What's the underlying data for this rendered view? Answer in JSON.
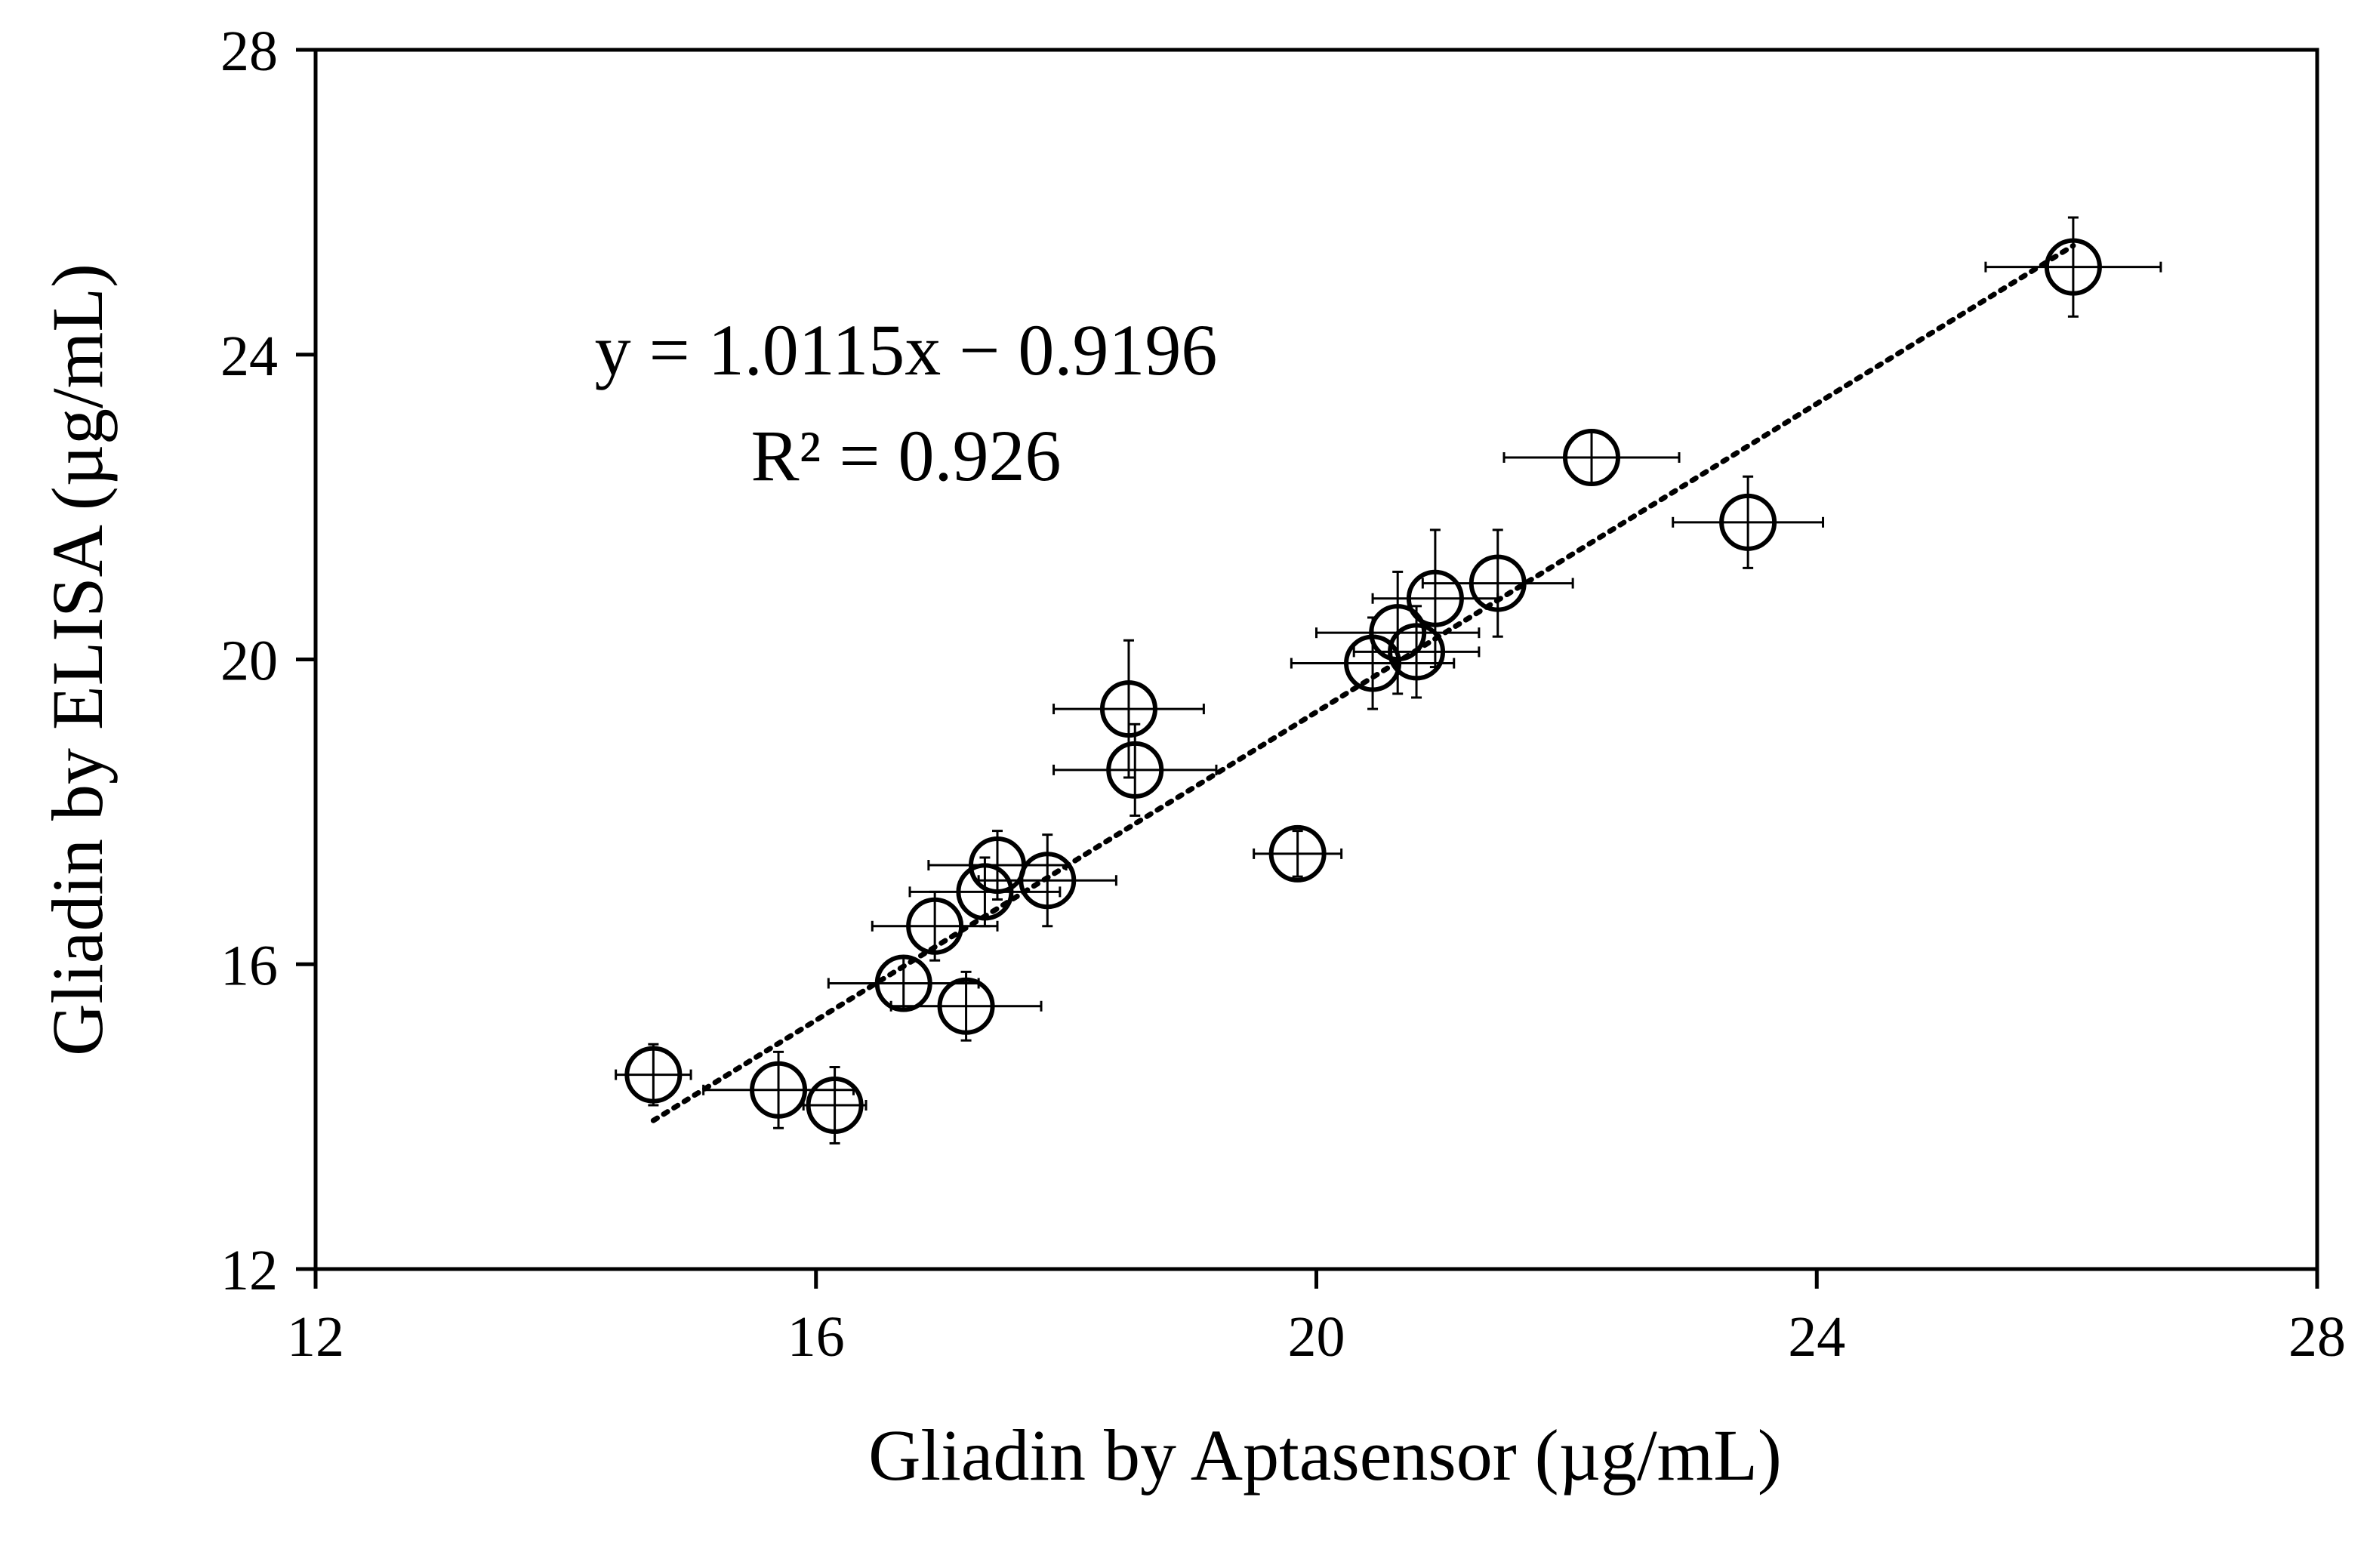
{
  "chart_data": {
    "type": "scatter",
    "xlabel": "Gliadin by Aptasensor (µg/mL)",
    "ylabel": "Gliadin by ELISA (µg/mL)",
    "xlim": [
      12,
      28
    ],
    "ylim": [
      12,
      28
    ],
    "xticks": [
      12,
      16,
      20,
      24,
      28
    ],
    "yticks": [
      12,
      16,
      20,
      24,
      28
    ],
    "grid": false,
    "legend": "none",
    "annotations": {
      "equation": "y = 1.0115x − 0.9196",
      "r_squared": "R² = 0.926"
    },
    "trendline": {
      "style": "dotted",
      "slope": 1.0115,
      "intercept": -0.9196,
      "x_range": [
        14.7,
        26.05
      ]
    },
    "points": [
      {
        "x": 14.7,
        "y": 14.55,
        "xerr": 0.3,
        "yerr": 0.4
      },
      {
        "x": 15.7,
        "y": 14.35,
        "xerr": 0.6,
        "yerr": 0.5
      },
      {
        "x": 16.15,
        "y": 14.15,
        "xerr": 0.25,
        "yerr": 0.5
      },
      {
        "x": 16.7,
        "y": 15.75,
        "xerr": 0.6,
        "yerr": 0.35
      },
      {
        "x": 16.95,
        "y": 16.5,
        "xerr": 0.5,
        "yerr": 0.45
      },
      {
        "x": 17.2,
        "y": 15.45,
        "xerr": 0.6,
        "yerr": 0.45
      },
      {
        "x": 17.35,
        "y": 16.95,
        "xerr": 0.6,
        "yerr": 0.45
      },
      {
        "x": 17.45,
        "y": 17.3,
        "xerr": 0.55,
        "yerr": 0.45
      },
      {
        "x": 17.85,
        "y": 17.1,
        "xerr": 0.55,
        "yerr": 0.6
      },
      {
        "x": 18.5,
        "y": 19.35,
        "xerr": 0.6,
        "yerr": 0.9
      },
      {
        "x": 18.55,
        "y": 18.55,
        "xerr": 0.65,
        "yerr": 0.6
      },
      {
        "x": 19.85,
        "y": 17.45,
        "xerr": 0.35,
        "yerr": 0.3
      },
      {
        "x": 20.45,
        "y": 19.95,
        "xerr": 0.65,
        "yerr": 0.6
      },
      {
        "x": 20.65,
        "y": 20.35,
        "xerr": 0.65,
        "yerr": 0.8
      },
      {
        "x": 20.8,
        "y": 20.1,
        "xerr": 0.5,
        "yerr": 0.6
      },
      {
        "x": 20.95,
        "y": 20.8,
        "xerr": 0.5,
        "yerr": 0.9
      },
      {
        "x": 21.45,
        "y": 21.0,
        "xerr": 0.6,
        "yerr": 0.7
      },
      {
        "x": 22.2,
        "y": 22.65,
        "xerr": 0.7,
        "yerr": 0.35
      },
      {
        "x": 23.45,
        "y": 21.8,
        "xerr": 0.6,
        "yerr": 0.6
      },
      {
        "x": 26.05,
        "y": 25.15,
        "xerr": 0.7,
        "yerr": 0.65
      }
    ]
  }
}
